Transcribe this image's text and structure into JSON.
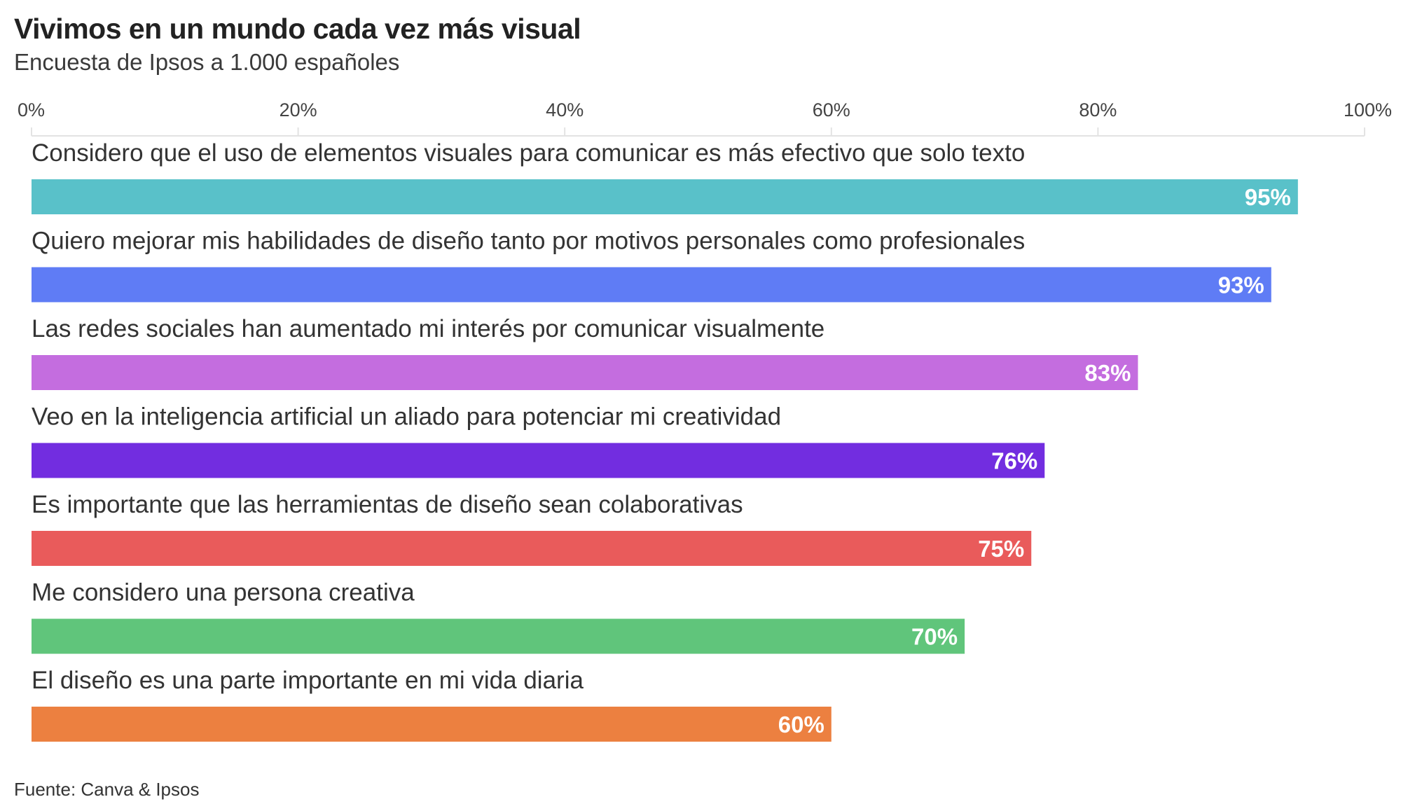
{
  "title": "Vivimos en un mundo cada vez más visual",
  "subtitle": "Encuesta de Ipsos a 1.000 españoles",
  "source": "Fuente: Canva & Ipsos",
  "chart_data": {
    "type": "bar",
    "orientation": "horizontal",
    "title": "Vivimos en un mundo cada vez más visual",
    "subtitle": "Encuesta de Ipsos a 1.000 españoles",
    "xlim": [
      0,
      100
    ],
    "ticks": [
      0,
      20,
      40,
      60,
      80,
      100
    ],
    "tick_labels": [
      "0%",
      "20%",
      "40%",
      "60%",
      "80%",
      "100%"
    ],
    "tick_position": "top",
    "grid": false,
    "legend": "none",
    "categories": [
      "Considero que el uso de elementos visuales para comunicar es más efectivo que solo texto",
      "Quiero mejorar mis habilidades de diseño tanto por motivos personales como profesionales",
      "Las redes sociales han aumentado mi interés por comunicar visualmente",
      "Veo en la inteligencia artificial un aliado para potenciar mi creatividad",
      "Es importante que las herramientas de diseño sean colaborativas",
      "Me considero una persona creativa",
      "El diseño es una parte importante en mi vida diaria"
    ],
    "values": [
      95,
      93,
      83,
      76,
      75,
      70,
      60
    ],
    "value_labels": [
      "95%",
      "93%",
      "83%",
      "76%",
      "75%",
      "70%",
      "60%"
    ],
    "colors": [
      "#59c1c9",
      "#5f7cf5",
      "#c46ddf",
      "#722de0",
      "#e95b5b",
      "#60c57b",
      "#ec8040"
    ],
    "value_label_color": "#ffffff",
    "axis_color": "#e3e3e3"
  }
}
